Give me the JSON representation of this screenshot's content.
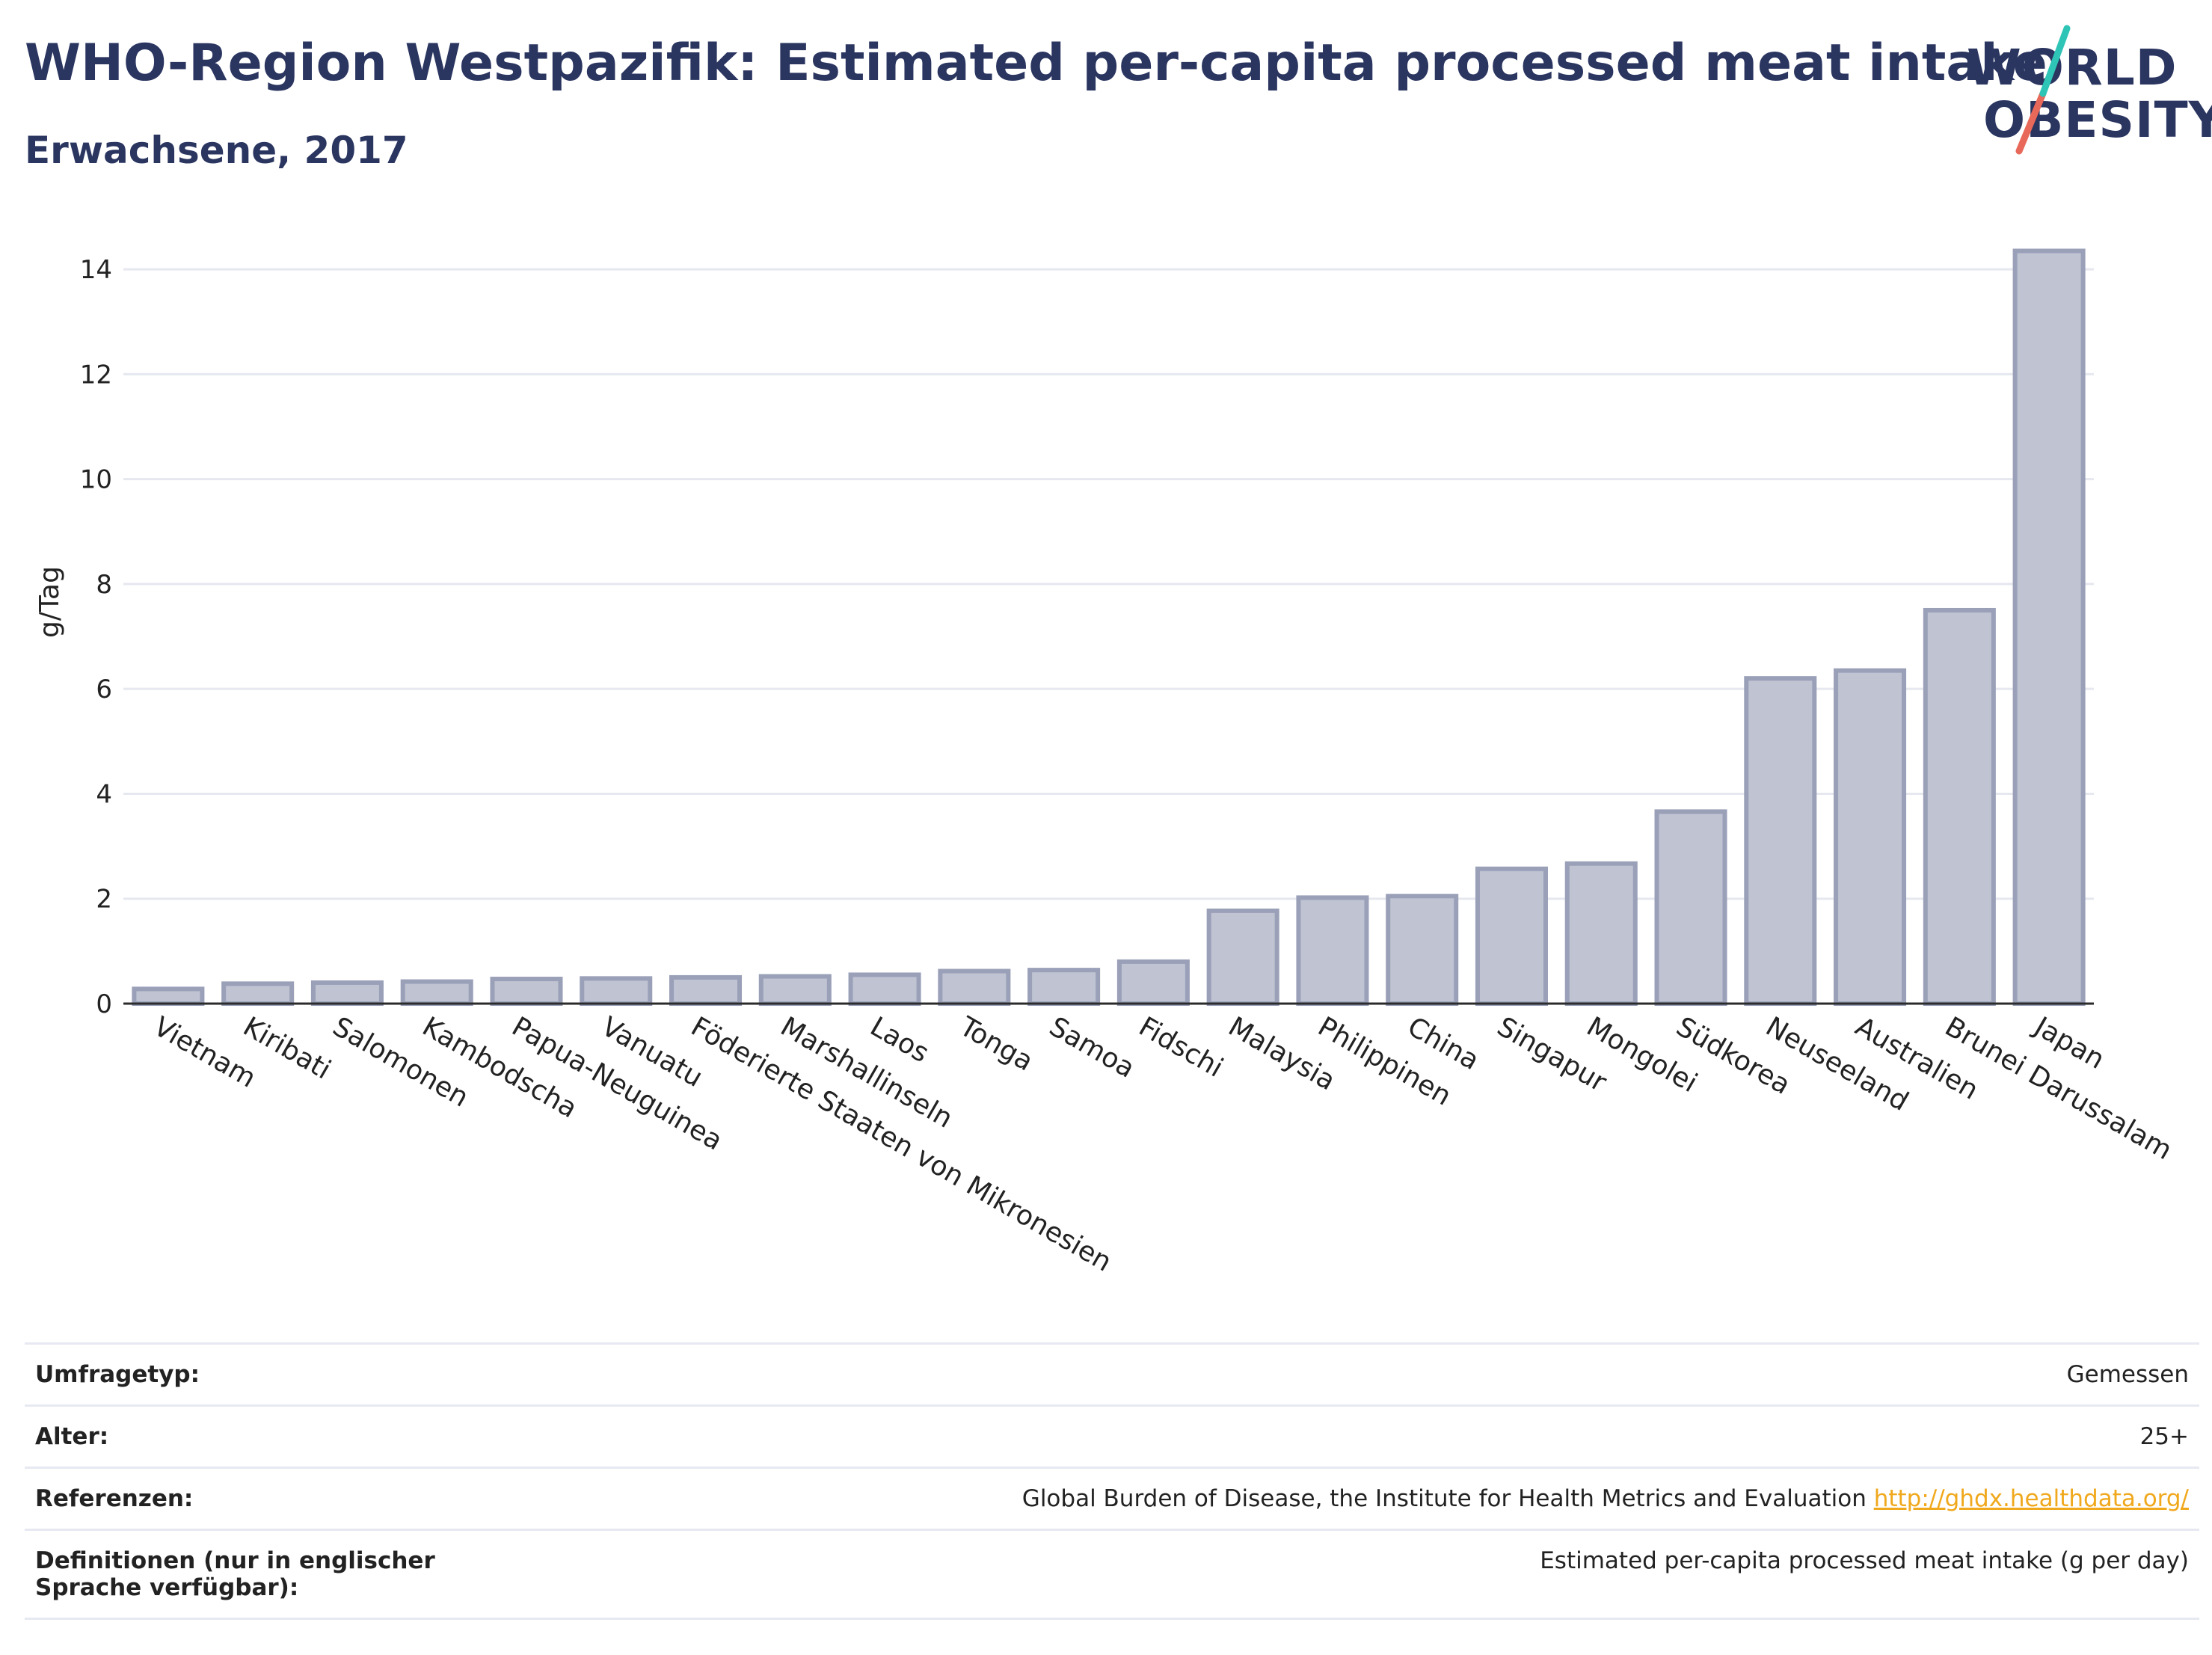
{
  "header": {
    "title": "WHO-Region Westpazifik: Estimated per-capita processed meat intake",
    "subtitle": "Erwachsene, 2017"
  },
  "logo": {
    "line1": "WORLD",
    "line2": "OBESITY",
    "colors": {
      "text": "#2a3560",
      "slash_top": "#2ec4b6",
      "slash_bottom": "#e8685a"
    }
  },
  "colors": {
    "bar_fill": "#bfc3d2",
    "bar_stroke": "#9aa0b8",
    "grid": "#e6e8ef",
    "axis": "#2b2b2b",
    "link": "#f0a81c"
  },
  "chart_data": {
    "type": "bar",
    "ylabel": "g/Tag",
    "ylim": [
      0,
      14.5
    ],
    "yticks": [
      0,
      2,
      4,
      6,
      8,
      10,
      12,
      14
    ],
    "grid": true,
    "categories": [
      "Vietnam",
      "Kiribati",
      "Salomonen",
      "Kambodscha",
      "Papua-Neuguinea",
      "Vanuatu",
      "Föderierte Staaten von Mikronesien",
      "Marshallinseln",
      "Laos",
      "Tonga",
      "Samoa",
      "Fidschi",
      "Malaysia",
      "Philippinen",
      "China",
      "Singapur",
      "Mongolei",
      "Südkorea",
      "Neuseeland",
      "Australien",
      "Brunei Darussalam",
      "Japan"
    ],
    "values": [
      0.28,
      0.38,
      0.4,
      0.42,
      0.47,
      0.48,
      0.5,
      0.52,
      0.55,
      0.62,
      0.64,
      0.8,
      1.77,
      2.02,
      2.05,
      2.57,
      2.67,
      3.66,
      6.2,
      6.35,
      7.5,
      14.35
    ]
  },
  "info": {
    "rows": [
      {
        "label": "Umfragetyp:",
        "value": "Gemessen"
      },
      {
        "label": "Alter:",
        "value": "25+"
      },
      {
        "label": "Referenzen:",
        "value": "Global Burden of Disease, the Institute for Health Metrics and Evaluation",
        "link": "http://ghdx.healthdata.org/"
      },
      {
        "label": "Definitionen (nur in englischer Sprache verfügbar):",
        "value": "Estimated per-capita processed meat intake (g per day)"
      }
    ]
  }
}
